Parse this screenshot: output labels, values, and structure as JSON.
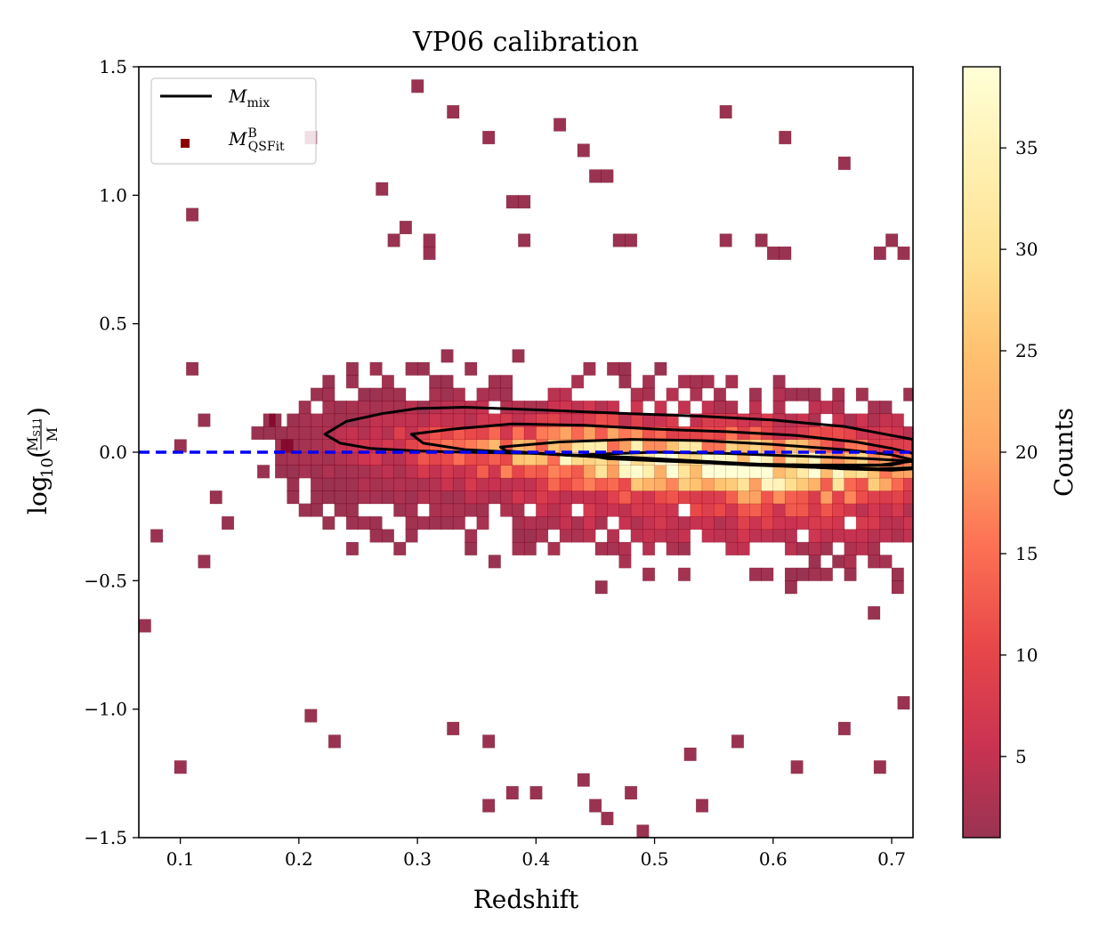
{
  "chart_data": {
    "type": "heatmap",
    "title": "VP06 calibration",
    "xlabel": "Redshift",
    "ylabel": "log10(M_S11 / M)",
    "ylabel_parts": {
      "func": "log",
      "sub": "10",
      "num": "M",
      "num_sub": "S11",
      "den": "M"
    },
    "xlim": [
      0.065,
      0.718
    ],
    "ylim": [
      -1.5,
      1.5
    ],
    "x_ticks": [
      0.1,
      0.2,
      0.3,
      0.4,
      0.5,
      0.6,
      0.7
    ],
    "x_tick_labels": [
      "0.1",
      "0.2",
      "0.3",
      "0.4",
      "0.5",
      "0.6",
      "0.7"
    ],
    "y_ticks": [
      -1.5,
      -1.0,
      -0.5,
      0.0,
      0.5,
      1.0,
      1.5
    ],
    "y_tick_labels": [
      "−1.5",
      "−1.0",
      "−0.5",
      "0.0",
      "0.5",
      "1.0",
      "1.5"
    ],
    "bins": {
      "x_width": 0.01,
      "y_width": 0.05
    },
    "grid": false,
    "reference_line": {
      "y": 0.0,
      "style": "dashed",
      "color": "#0000ff"
    },
    "legend": {
      "placement": "top-left",
      "entries": [
        {
          "kind": "line",
          "base": "M",
          "sub": "mix",
          "sup": "",
          "color": "#000000"
        },
        {
          "kind": "marker",
          "base": "M",
          "sub": "QSFit",
          "sup": "B",
          "color": "#8b0000"
        }
      ]
    },
    "colorbar": {
      "label": "Counts",
      "range": [
        1,
        39
      ],
      "ticks": [
        5,
        10,
        15,
        20,
        25,
        30,
        35
      ],
      "tick_labels": [
        "5",
        "10",
        "15",
        "20",
        "25",
        "30",
        "35"
      ],
      "colormap": "YlOrRd_r",
      "alpha": 0.8
    },
    "density": {
      "ridge": [
        [
          0.18,
          0.04
        ],
        [
          0.25,
          0.03
        ],
        [
          0.35,
          0.01
        ],
        [
          0.45,
          -0.02
        ],
        [
          0.55,
          -0.05
        ],
        [
          0.65,
          -0.07
        ],
        [
          0.72,
          -0.08
        ]
      ],
      "peak_x": 0.55,
      "peak_counts": 36,
      "scatter_width": 0.24,
      "core_width": 0.09
    },
    "outlier_cells": [
      [
        0.3,
        1.425
      ],
      [
        0.33,
        1.325
      ],
      [
        0.21,
        1.225
      ],
      [
        0.42,
        1.275
      ],
      [
        0.56,
        1.325
      ],
      [
        0.61,
        1.225
      ],
      [
        0.66,
        1.125
      ],
      [
        0.36,
        1.225
      ],
      [
        0.44,
        1.175
      ],
      [
        0.45,
        1.075
      ],
      [
        0.46,
        1.075
      ],
      [
        0.27,
        1.025
      ],
      [
        0.11,
        0.925
      ],
      [
        0.38,
        0.975
      ],
      [
        0.39,
        0.975
      ],
      [
        0.29,
        0.875
      ],
      [
        0.28,
        0.825
      ],
      [
        0.31,
        0.825
      ],
      [
        0.39,
        0.825
      ],
      [
        0.47,
        0.825
      ],
      [
        0.48,
        0.825
      ],
      [
        0.56,
        0.825
      ],
      [
        0.59,
        0.825
      ],
      [
        0.6,
        0.775
      ],
      [
        0.61,
        0.775
      ],
      [
        0.69,
        0.775
      ],
      [
        0.7,
        0.825
      ],
      [
        0.71,
        0.775
      ],
      [
        0.31,
        0.775
      ],
      [
        0.11,
        0.325
      ],
      [
        0.1,
        0.025
      ],
      [
        0.08,
        -0.325
      ],
      [
        0.12,
        -0.425
      ],
      [
        0.07,
        -0.675
      ],
      [
        0.1,
        -1.225
      ],
      [
        0.21,
        -1.025
      ],
      [
        0.23,
        -1.125
      ],
      [
        0.33,
        -1.075
      ],
      [
        0.36,
        -1.125
      ],
      [
        0.36,
        -1.375
      ],
      [
        0.38,
        -1.325
      ],
      [
        0.4,
        -1.325
      ],
      [
        0.44,
        -1.275
      ],
      [
        0.45,
        -1.375
      ],
      [
        0.46,
        -1.425
      ],
      [
        0.48,
        -1.325
      ],
      [
        0.49,
        -1.475
      ],
      [
        0.53,
        -1.175
      ],
      [
        0.54,
        -1.375
      ],
      [
        0.57,
        -1.125
      ],
      [
        0.62,
        -1.225
      ],
      [
        0.66,
        -1.075
      ],
      [
        0.69,
        -1.225
      ],
      [
        0.71,
        -0.975
      ],
      [
        0.18,
        0.125
      ],
      [
        0.19,
        0.025
      ],
      [
        0.12,
        0.125
      ],
      [
        0.17,
        -0.075
      ],
      [
        0.13,
        -0.175
      ],
      [
        0.14,
        -0.275
      ]
    ],
    "contours": [
      {
        "level": "outer",
        "points": [
          [
            0.222,
            0.07
          ],
          [
            0.24,
            0.12
          ],
          [
            0.27,
            0.15
          ],
          [
            0.3,
            0.17
          ],
          [
            0.34,
            0.175
          ],
          [
            0.4,
            0.165
          ],
          [
            0.48,
            0.15
          ],
          [
            0.54,
            0.14
          ],
          [
            0.6,
            0.125
          ],
          [
            0.66,
            0.1
          ],
          [
            0.7,
            0.065
          ],
          [
            0.718,
            0.05
          ],
          [
            0.718,
            -0.065
          ],
          [
            0.7,
            -0.07
          ],
          [
            0.66,
            -0.065
          ],
          [
            0.6,
            -0.05
          ],
          [
            0.54,
            -0.035
          ],
          [
            0.48,
            -0.02
          ],
          [
            0.4,
            -0.005
          ],
          [
            0.34,
            0.0
          ],
          [
            0.3,
            0.005
          ],
          [
            0.26,
            0.015
          ],
          [
            0.235,
            0.035
          ],
          [
            0.222,
            0.07
          ]
        ]
      },
      {
        "level": "middle",
        "points": [
          [
            0.295,
            0.07
          ],
          [
            0.33,
            0.09
          ],
          [
            0.38,
            0.11
          ],
          [
            0.44,
            0.105
          ],
          [
            0.5,
            0.09
          ],
          [
            0.56,
            0.08
          ],
          [
            0.62,
            0.065
          ],
          [
            0.67,
            0.04
          ],
          [
            0.7,
            0.015
          ],
          [
            0.718,
            -0.005
          ],
          [
            0.718,
            -0.06
          ],
          [
            0.69,
            -0.065
          ],
          [
            0.64,
            -0.06
          ],
          [
            0.58,
            -0.05
          ],
          [
            0.52,
            -0.035
          ],
          [
            0.46,
            -0.02
          ],
          [
            0.4,
            -0.005
          ],
          [
            0.34,
            0.01
          ],
          [
            0.305,
            0.035
          ],
          [
            0.295,
            0.07
          ]
        ]
      },
      {
        "level": "inner",
        "points": [
          [
            0.37,
            0.02
          ],
          [
            0.42,
            0.04
          ],
          [
            0.48,
            0.05
          ],
          [
            0.54,
            0.045
          ],
          [
            0.6,
            0.03
          ],
          [
            0.66,
            0.01
          ],
          [
            0.7,
            -0.01
          ],
          [
            0.718,
            -0.03
          ],
          [
            0.7,
            -0.05
          ],
          [
            0.66,
            -0.055
          ],
          [
            0.6,
            -0.05
          ],
          [
            0.54,
            -0.04
          ],
          [
            0.48,
            -0.025
          ],
          [
            0.42,
            -0.01
          ],
          [
            0.375,
            0.005
          ],
          [
            0.37,
            0.02
          ]
        ]
      },
      {
        "level": "core",
        "points": [
          [
            0.44,
            -0.01
          ],
          [
            0.5,
            0.0
          ],
          [
            0.56,
            -0.005
          ],
          [
            0.62,
            -0.015
          ],
          [
            0.68,
            -0.025
          ],
          [
            0.718,
            -0.035
          ],
          [
            0.69,
            -0.05
          ],
          [
            0.63,
            -0.05
          ],
          [
            0.57,
            -0.045
          ],
          [
            0.51,
            -0.035
          ],
          [
            0.46,
            -0.025
          ],
          [
            0.44,
            -0.01
          ]
        ]
      }
    ]
  }
}
